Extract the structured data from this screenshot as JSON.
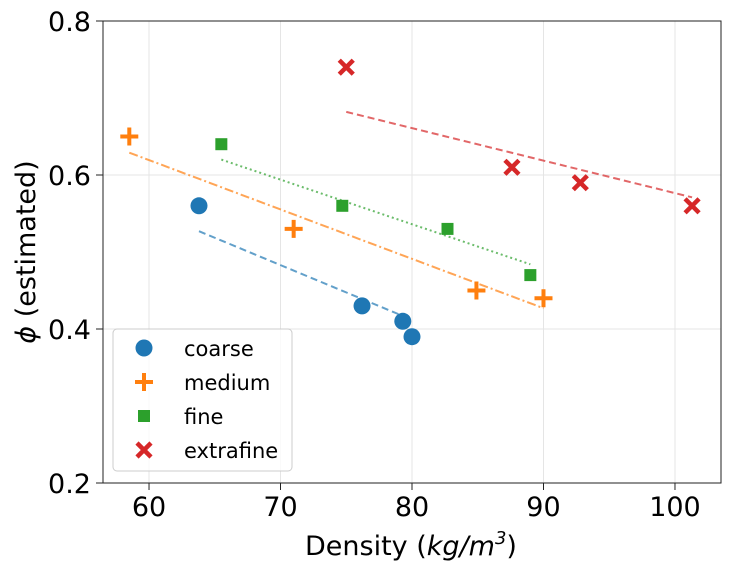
{
  "chart_data": {
    "type": "scatter",
    "xlabel_prefix": "Density (",
    "xlabel_unit": "kg/m",
    "xlabel_exp": "3",
    "xlabel_suffix": ")",
    "ylabel_symbol": "ϕ",
    "ylabel_text": " (estimated)",
    "xlim": [
      56.5,
      103.5
    ],
    "ylim": [
      0.2,
      0.8
    ],
    "xticks": [
      60,
      70,
      80,
      90,
      100
    ],
    "xtick_labels": [
      "60",
      "70",
      "80",
      "90",
      "100"
    ],
    "yticks": [
      0.2,
      0.4,
      0.6,
      0.8
    ],
    "ytick_labels": [
      "0.2",
      "0.4",
      "0.6",
      "0.8"
    ],
    "grid": true,
    "legend_position": "lower-left",
    "series": [
      {
        "name": "coarse",
        "marker": "circle",
        "color": "#1f77b4",
        "x": [
          63.8,
          76.2,
          79.3,
          80.0
        ],
        "y": [
          0.56,
          0.43,
          0.41,
          0.39
        ],
        "fit": {
          "x": [
            63.8,
            80.0
          ],
          "y": [
            0.527,
            0.412
          ],
          "dash": "dashed"
        }
      },
      {
        "name": "medium",
        "marker": "plus",
        "color": "#ff7f0e",
        "x": [
          58.5,
          71.0,
          84.9,
          90.0
        ],
        "y": [
          0.65,
          0.53,
          0.45,
          0.44
        ],
        "fit": {
          "x": [
            58.5,
            90.0
          ],
          "y": [
            0.629,
            0.427
          ],
          "dash": "dashdot"
        }
      },
      {
        "name": "fine",
        "marker": "square",
        "color": "#2ca02c",
        "x": [
          65.5,
          74.7,
          82.7,
          89.0
        ],
        "y": [
          0.64,
          0.56,
          0.53,
          0.47
        ],
        "fit": {
          "x": [
            65.5,
            89.0
          ],
          "y": [
            0.62,
            0.484
          ],
          "dash": "dotted"
        }
      },
      {
        "name": "extrafine",
        "marker": "x",
        "color": "#d62728",
        "x": [
          75.0,
          87.6,
          92.8,
          101.3
        ],
        "y": [
          0.74,
          0.61,
          0.59,
          0.56
        ],
        "fit": {
          "x": [
            75.0,
            101.3
          ],
          "y": [
            0.682,
            0.571
          ],
          "dash": "dashed"
        }
      }
    ]
  }
}
